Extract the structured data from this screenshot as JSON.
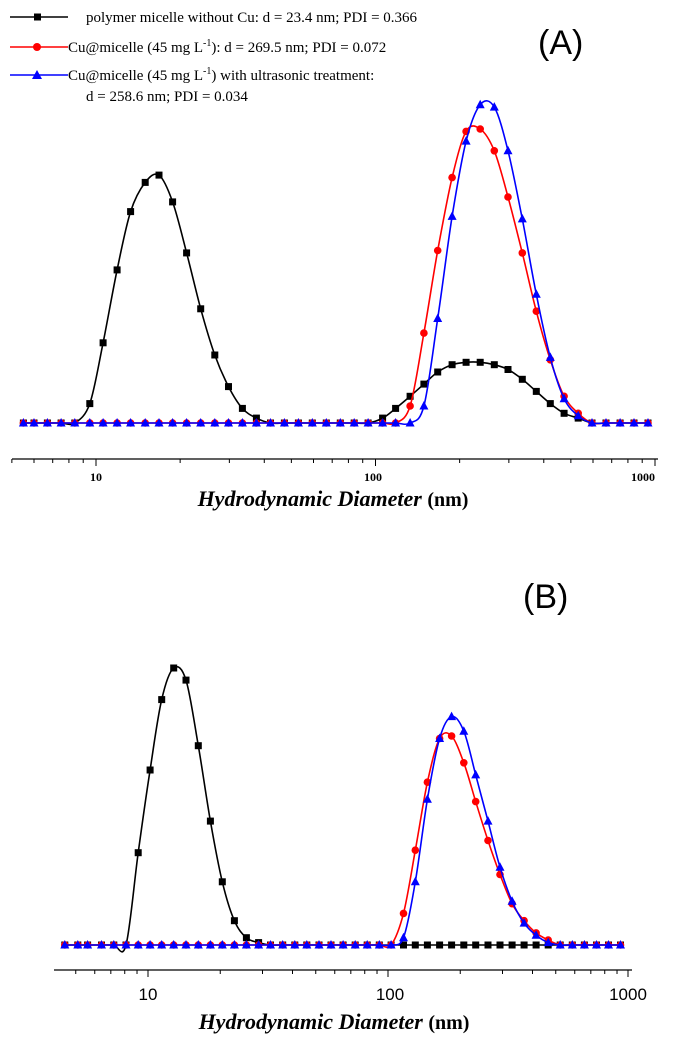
{
  "colors": {
    "black": "#000000",
    "red": "#ff0000",
    "blue": "#0000ff"
  },
  "legend": {
    "entries": [
      {
        "text": "polymer micelle without Cu: d = 23.4 nm; PDI = 0.366"
      },
      {
        "pre": "Cu@micelle (45 mg L",
        "sup": "-1",
        "post": "): d = 269.5 nm; PDI = 0.072"
      },
      {
        "pre": "Cu@micelle (45 mg L",
        "sup": "-1",
        "post": ") with ultrasonic treatment:",
        "line2": "d = 258.6 nm; PDI = 0.034"
      }
    ]
  },
  "chart_data": [
    {
      "type": "line",
      "panel_label": "(A)",
      "xlabel": "Hydrodynamic Diameter",
      "xlabel_unit": "(nm)",
      "x_scale": "log",
      "xlim": [
        5,
        1000
      ],
      "x_ticks": [
        10,
        100,
        1000
      ],
      "x_tick_labels": [
        "10",
        "100",
        "1000"
      ],
      "ylim": [
        0,
        12.5
      ],
      "legend_placement": "top-left",
      "series": [
        {
          "color": "#000000",
          "marker": "square",
          "x": [
            5.5,
            6.0,
            6.7,
            7.5,
            8.4,
            9.5,
            10.6,
            11.9,
            13.3,
            15.0,
            16.8,
            18.8,
            21.1,
            23.7,
            26.6,
            29.8,
            33.4,
            37.5,
            42.1,
            47.2,
            53.0,
            59.4,
            66.7,
            74.8,
            83.9,
            94.1,
            106,
            118,
            133,
            149,
            167,
            188,
            211,
            237,
            266,
            298,
            335,
            376,
            422,
            473,
            531,
            595,
            668,
            750,
            841,
            944
          ],
          "y": [
            0,
            0,
            0,
            0,
            0,
            0.8,
            3.3,
            6.3,
            8.7,
            9.9,
            10.2,
            9.1,
            7.0,
            4.7,
            2.8,
            1.5,
            0.6,
            0.2,
            0,
            0,
            0,
            0,
            0,
            0,
            0,
            0,
            0.2,
            0.6,
            1.1,
            1.6,
            2.1,
            2.4,
            2.5,
            2.5,
            2.4,
            2.2,
            1.8,
            1.3,
            0.8,
            0.4,
            0.2,
            0,
            0,
            0,
            0,
            0
          ]
        },
        {
          "color": "#ff0000",
          "marker": "circle",
          "x": [
            5.5,
            6.0,
            6.7,
            7.5,
            8.4,
            9.5,
            10.6,
            11.9,
            13.3,
            15.0,
            16.8,
            18.8,
            21.1,
            23.7,
            26.6,
            29.8,
            33.4,
            37.5,
            42.1,
            47.2,
            53.0,
            59.4,
            66.7,
            74.8,
            83.9,
            94.1,
            106,
            118,
            133,
            149,
            167,
            188,
            211,
            237,
            266,
            298,
            335,
            376,
            422,
            473,
            531,
            595,
            668,
            750,
            841,
            944
          ],
          "y": [
            0,
            0,
            0,
            0,
            0,
            0,
            0,
            0,
            0,
            0,
            0,
            0,
            0,
            0,
            0,
            0,
            0,
            0,
            0,
            0,
            0,
            0,
            0,
            0,
            0,
            0,
            0,
            0,
            0.7,
            3.7,
            7.1,
            10.1,
            12.0,
            12.1,
            11.2,
            9.3,
            7.0,
            4.6,
            2.6,
            1.1,
            0.4,
            0,
            0,
            0,
            0,
            0
          ]
        },
        {
          "color": "#0000ff",
          "marker": "triangle",
          "x": [
            5.5,
            6.0,
            6.7,
            7.5,
            8.4,
            9.5,
            10.6,
            11.9,
            13.3,
            15.0,
            16.8,
            18.8,
            21.1,
            23.7,
            26.6,
            29.8,
            33.4,
            37.5,
            42.1,
            47.2,
            53.0,
            59.4,
            66.7,
            74.8,
            83.9,
            94.1,
            106,
            118,
            133,
            149,
            167,
            188,
            211,
            237,
            266,
            298,
            335,
            376,
            422,
            473,
            531,
            595,
            668,
            750,
            841,
            944
          ],
          "y": [
            0,
            0,
            0,
            0,
            0,
            0,
            0,
            0,
            0,
            0,
            0,
            0,
            0,
            0,
            0,
            0,
            0,
            0,
            0,
            0,
            0,
            0,
            0,
            0,
            0,
            0,
            0,
            0,
            0,
            0.7,
            4.3,
            8.5,
            11.6,
            13.1,
            13.0,
            11.2,
            8.4,
            5.3,
            2.7,
            1.0,
            0.3,
            0,
            0,
            0,
            0,
            0
          ]
        }
      ]
    },
    {
      "type": "line",
      "panel_label": "(B)",
      "xlabel": "Hydrodynamic Diameter",
      "xlabel_unit": "(nm)",
      "x_scale": "log",
      "xlim": [
        4.3,
        1000
      ],
      "x_ticks": [
        10,
        100,
        1000
      ],
      "x_tick_labels": [
        "10",
        "100",
        "1000"
      ],
      "ylim": [
        0,
        12.5
      ],
      "series": [
        {
          "color": "#000000",
          "marker": "square",
          "x": [
            4.5,
            5.1,
            5.6,
            6.4,
            7.2,
            8.1,
            9.1,
            10.2,
            11.4,
            12.8,
            14.4,
            16.2,
            18.2,
            20.4,
            22.9,
            25.7,
            28.9,
            32.4,
            36.4,
            40.9,
            45.9,
            51.6,
            57.9,
            65.0,
            73.0,
            81.9,
            92.0,
            103,
            116,
            130,
            146,
            164,
            184,
            207,
            232,
            261,
            293,
            329,
            369,
            414,
            465,
            522,
            586,
            658,
            739,
            829,
            931
          ],
          "y": [
            0,
            0,
            0,
            0,
            0,
            0,
            3.8,
            7.2,
            10.1,
            11.4,
            10.9,
            8.2,
            5.1,
            2.6,
            1.0,
            0.3,
            0.1,
            0,
            0,
            0,
            0,
            0,
            0,
            0,
            0,
            0,
            0,
            0,
            0,
            0,
            0,
            0,
            0,
            0,
            0,
            0,
            0,
            0,
            0,
            0,
            0,
            0,
            0,
            0,
            0,
            0,
            0
          ]
        },
        {
          "color": "#ff0000",
          "marker": "circle",
          "x": [
            4.5,
            5.1,
            5.6,
            6.4,
            7.2,
            8.1,
            9.1,
            10.2,
            11.4,
            12.8,
            14.4,
            16.2,
            18.2,
            20.4,
            22.9,
            25.7,
            28.9,
            32.4,
            36.4,
            40.9,
            45.9,
            51.6,
            57.9,
            65.0,
            73.0,
            81.9,
            92.0,
            103,
            116,
            130,
            146,
            164,
            184,
            207,
            232,
            261,
            293,
            329,
            369,
            414,
            465,
            522,
            586,
            658,
            739,
            829,
            931
          ],
          "y": [
            0,
            0,
            0,
            0,
            0,
            0,
            0,
            0,
            0,
            0,
            0,
            0,
            0,
            0,
            0,
            0,
            0,
            0,
            0,
            0,
            0,
            0,
            0,
            0,
            0,
            0,
            0,
            0,
            1.3,
            3.9,
            6.7,
            8.5,
            8.6,
            7.5,
            5.9,
            4.3,
            2.9,
            1.7,
            1.0,
            0.5,
            0.2,
            0,
            0,
            0,
            0,
            0,
            0
          ]
        },
        {
          "color": "#0000ff",
          "marker": "triangle",
          "x": [
            4.5,
            5.1,
            5.6,
            6.4,
            7.2,
            8.1,
            9.1,
            10.2,
            11.4,
            12.8,
            14.4,
            16.2,
            18.2,
            20.4,
            22.9,
            25.7,
            28.9,
            32.4,
            36.4,
            40.9,
            45.9,
            51.6,
            57.9,
            65.0,
            73.0,
            81.9,
            92.0,
            103,
            116,
            130,
            146,
            164,
            184,
            207,
            232,
            261,
            293,
            329,
            369,
            414,
            465,
            522,
            586,
            658,
            739,
            829,
            931
          ],
          "y": [
            0,
            0,
            0,
            0,
            0,
            0,
            0,
            0,
            0,
            0,
            0,
            0,
            0,
            0,
            0,
            0,
            0,
            0,
            0,
            0,
            0,
            0,
            0,
            0,
            0,
            0,
            0,
            0,
            0.3,
            2.6,
            6.0,
            8.5,
            9.4,
            8.8,
            7.0,
            5.1,
            3.2,
            1.8,
            0.9,
            0.4,
            0.1,
            0,
            0,
            0,
            0,
            0,
            0
          ]
        }
      ]
    }
  ]
}
